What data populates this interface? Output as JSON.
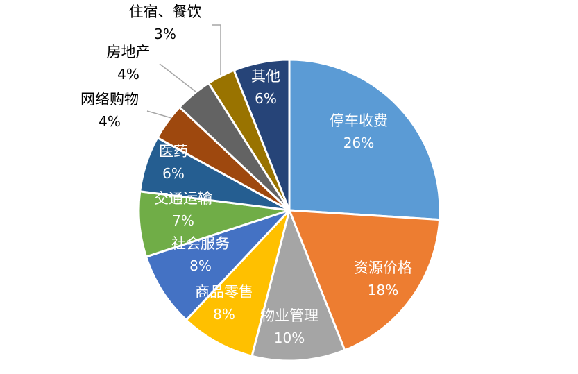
{
  "chart_data": {
    "type": "pie",
    "title": "",
    "categories": [
      "停车收费",
      "资源价格",
      "物业管理",
      "商品零售",
      "社会服务",
      "交通运输",
      "医药",
      "网络购物",
      "房地产",
      "住宿、餐饮",
      "其他"
    ],
    "values": [
      26,
      18,
      10,
      8,
      8,
      7,
      6,
      4,
      4,
      3,
      6
    ],
    "value_labels": [
      "26%",
      "18%",
      "10%",
      "8%",
      "8%",
      "7%",
      "6%",
      "4%",
      "4%",
      "3%",
      "6%"
    ],
    "colors": [
      "#5B9BD5",
      "#ED7D31",
      "#A5A5A5",
      "#FFC000",
      "#4472C4",
      "#70AD47",
      "#255E91",
      "#9E480E",
      "#636363",
      "#997300",
      "#264478"
    ],
    "label_colors": [
      "#ffffff",
      "#ffffff",
      "#ffffff",
      "#ffffff",
      "#ffffff",
      "#ffffff",
      "#ffffff",
      "#000000",
      "#000000",
      "#000000",
      "#ffffff"
    ],
    "start_angle": "12 o'clock",
    "direction": "clockwise",
    "legend": "none",
    "leader_lines": [
      "网络购物",
      "房地产",
      "住宿、餐饮"
    ]
  }
}
